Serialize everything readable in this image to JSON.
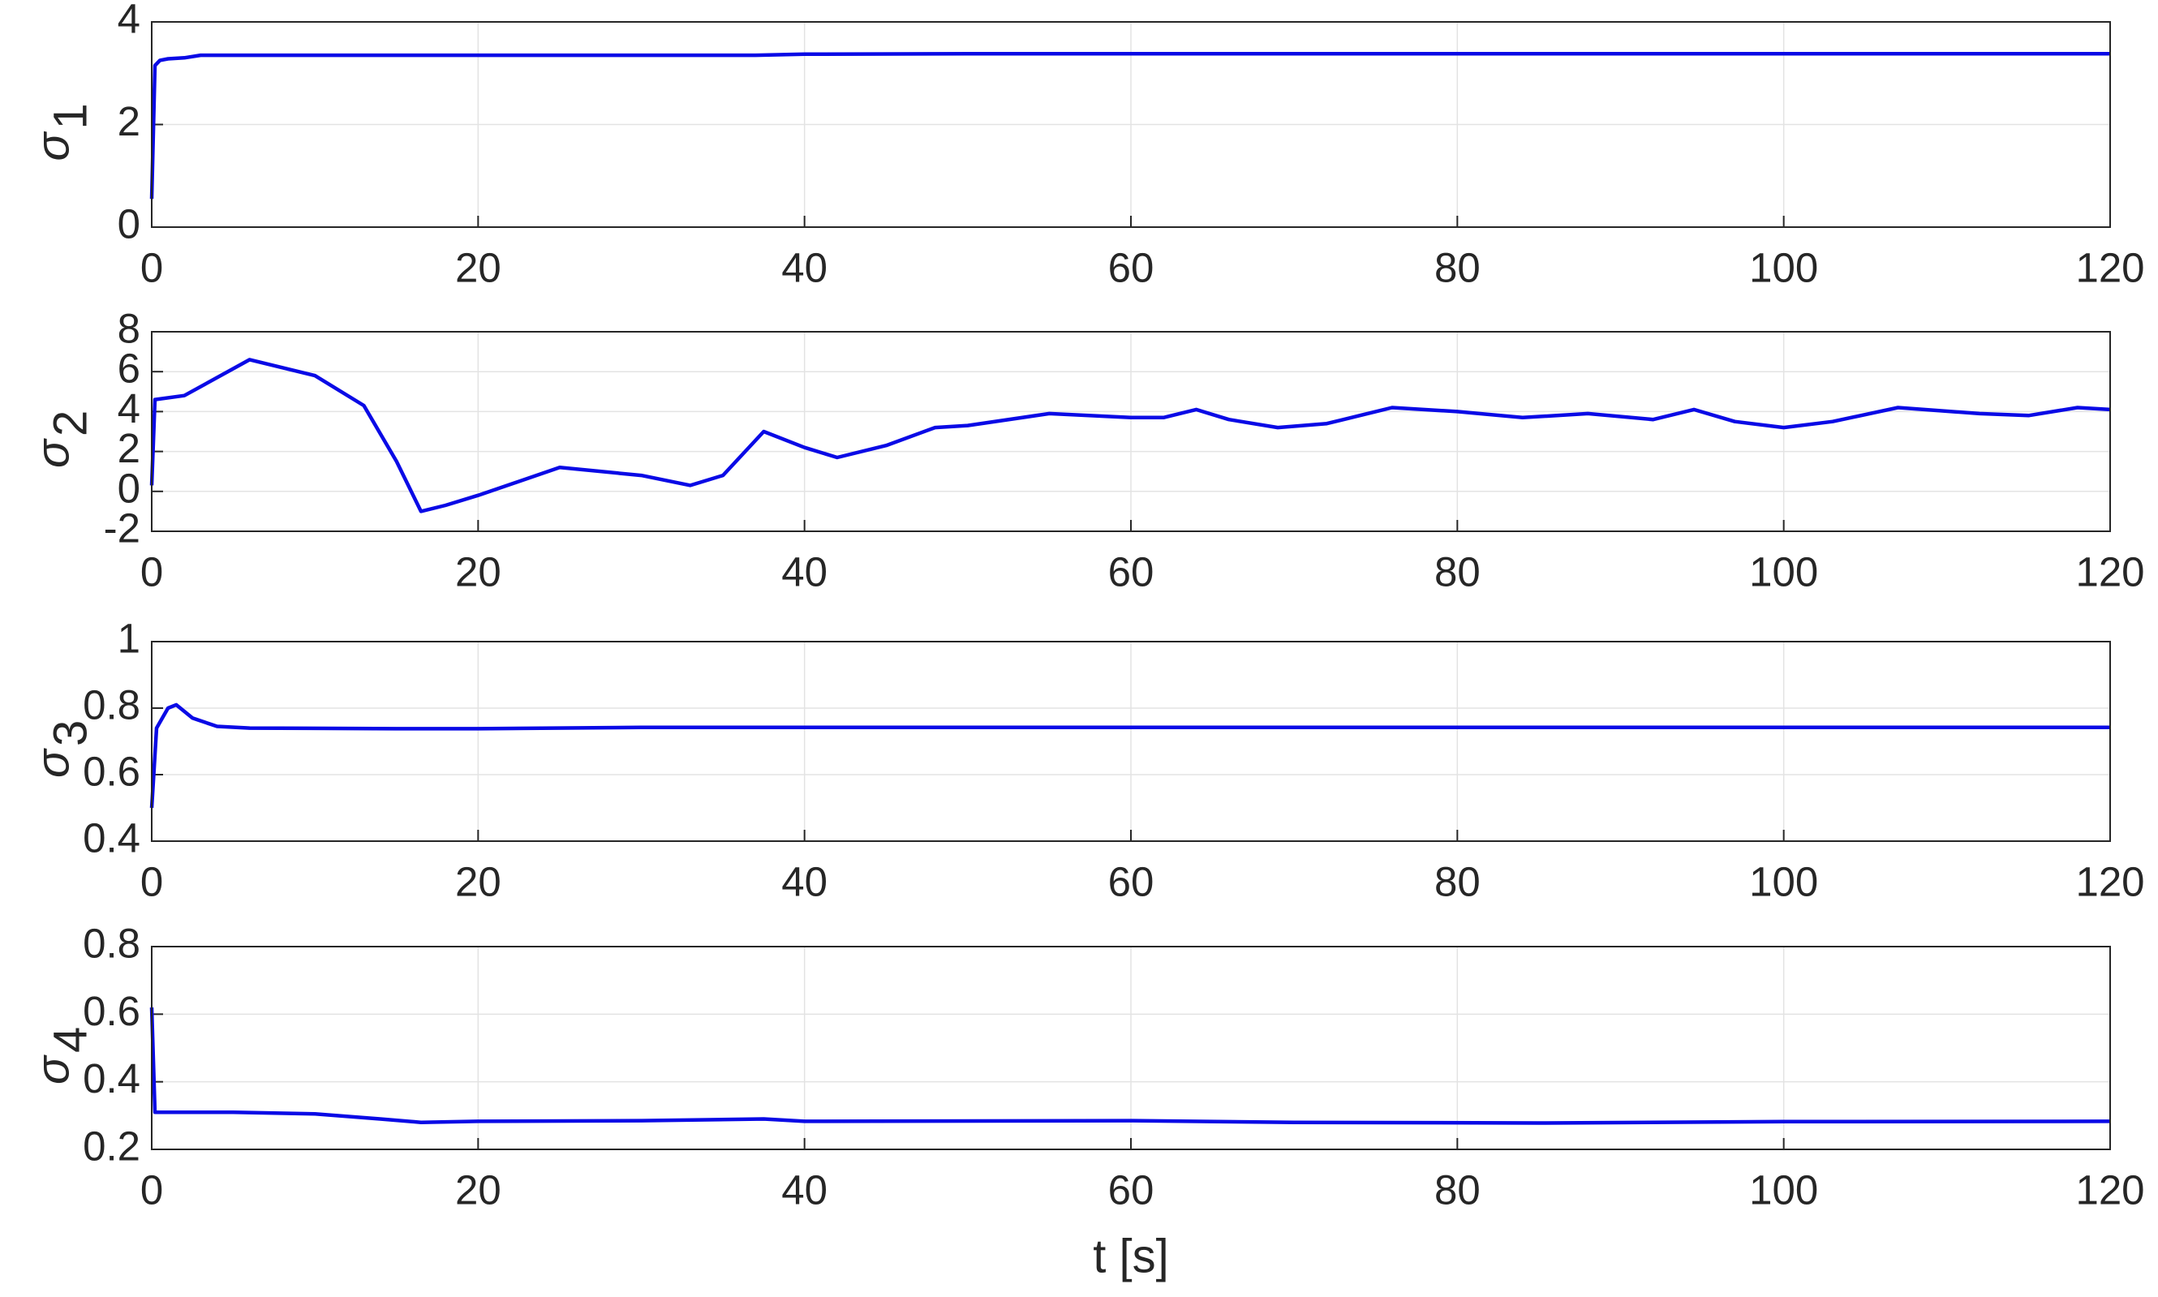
{
  "chart_data": [
    {
      "type": "line",
      "ylabel": "σ",
      "ylabel_subscript": "1",
      "grid": true,
      "xlim": [
        0,
        120
      ],
      "xticks": [
        0,
        20,
        40,
        60,
        80,
        100,
        120
      ],
      "ylim": [
        0,
        4
      ],
      "yticks": [
        0,
        2,
        4
      ],
      "x": [
        0,
        0.2,
        0.5,
        1,
        2,
        3,
        5,
        10,
        20,
        30,
        37,
        40,
        50,
        60,
        80,
        100,
        120
      ],
      "series": [
        {
          "color": "#0a0ae6",
          "values": [
            0.55,
            3.15,
            3.25,
            3.28,
            3.3,
            3.35,
            3.35,
            3.35,
            3.35,
            3.35,
            3.35,
            3.37,
            3.38,
            3.38,
            3.38,
            3.38,
            3.38
          ]
        }
      ]
    },
    {
      "type": "line",
      "ylabel": "σ",
      "ylabel_subscript": "2",
      "grid": true,
      "xlim": [
        0,
        120
      ],
      "xticks": [
        0,
        20,
        40,
        60,
        80,
        100,
        120
      ],
      "ylim": [
        -2,
        8
      ],
      "yticks": [
        -2,
        0,
        2,
        4,
        6,
        8
      ],
      "x": [
        0,
        0.2,
        2,
        6,
        10,
        13,
        15,
        16.5,
        18,
        20,
        25,
        30,
        33,
        35,
        37.5,
        40,
        42,
        45,
        48,
        50,
        55,
        60,
        62,
        64,
        66,
        69,
        72,
        76,
        80,
        84,
        88,
        92,
        94.5,
        97,
        100,
        103,
        107,
        112,
        115,
        118,
        120
      ],
      "series": [
        {
          "color": "#0a0ae6",
          "values": [
            0.3,
            4.6,
            4.8,
            6.6,
            5.8,
            4.3,
            1.5,
            -1.0,
            -0.7,
            -0.2,
            1.2,
            0.8,
            0.3,
            0.8,
            3.0,
            2.2,
            1.7,
            2.3,
            3.2,
            3.3,
            3.9,
            3.7,
            3.7,
            4.1,
            3.6,
            3.2,
            3.4,
            4.2,
            4.0,
            3.7,
            3.9,
            3.6,
            4.1,
            3.5,
            3.2,
            3.5,
            4.2,
            3.9,
            3.8,
            4.2,
            4.1
          ]
        }
      ]
    },
    {
      "type": "line",
      "ylabel": "σ",
      "ylabel_subscript": "3",
      "grid": true,
      "xlim": [
        0,
        120
      ],
      "xticks": [
        0,
        20,
        40,
        60,
        80,
        100,
        120
      ],
      "ylim": [
        0.4,
        1
      ],
      "yticks": [
        0.4,
        0.6,
        0.8,
        1
      ],
      "x": [
        0,
        0.3,
        1,
        1.5,
        2.5,
        4,
        6,
        15,
        20,
        30,
        60,
        90,
        120
      ],
      "series": [
        {
          "color": "#0a0ae6",
          "values": [
            0.5,
            0.74,
            0.8,
            0.81,
            0.77,
            0.745,
            0.74,
            0.738,
            0.738,
            0.742,
            0.742,
            0.742,
            0.742
          ]
        }
      ]
    },
    {
      "type": "line",
      "ylabel": "σ",
      "ylabel_subscript": "4",
      "xlabel": "t [s]",
      "grid": true,
      "xlim": [
        0,
        120
      ],
      "xticks": [
        0,
        20,
        40,
        60,
        80,
        100,
        120
      ],
      "ylim": [
        0.2,
        0.8
      ],
      "yticks": [
        0.2,
        0.4,
        0.6,
        0.8
      ],
      "x": [
        0,
        0.2,
        5,
        10,
        14,
        16.5,
        20,
        30,
        37.5,
        40,
        60,
        70,
        85,
        100,
        120
      ],
      "series": [
        {
          "color": "#0a0ae6",
          "values": [
            0.62,
            0.31,
            0.31,
            0.305,
            0.29,
            0.28,
            0.283,
            0.285,
            0.29,
            0.283,
            0.285,
            0.28,
            0.278,
            0.282,
            0.283
          ]
        }
      ]
    }
  ]
}
